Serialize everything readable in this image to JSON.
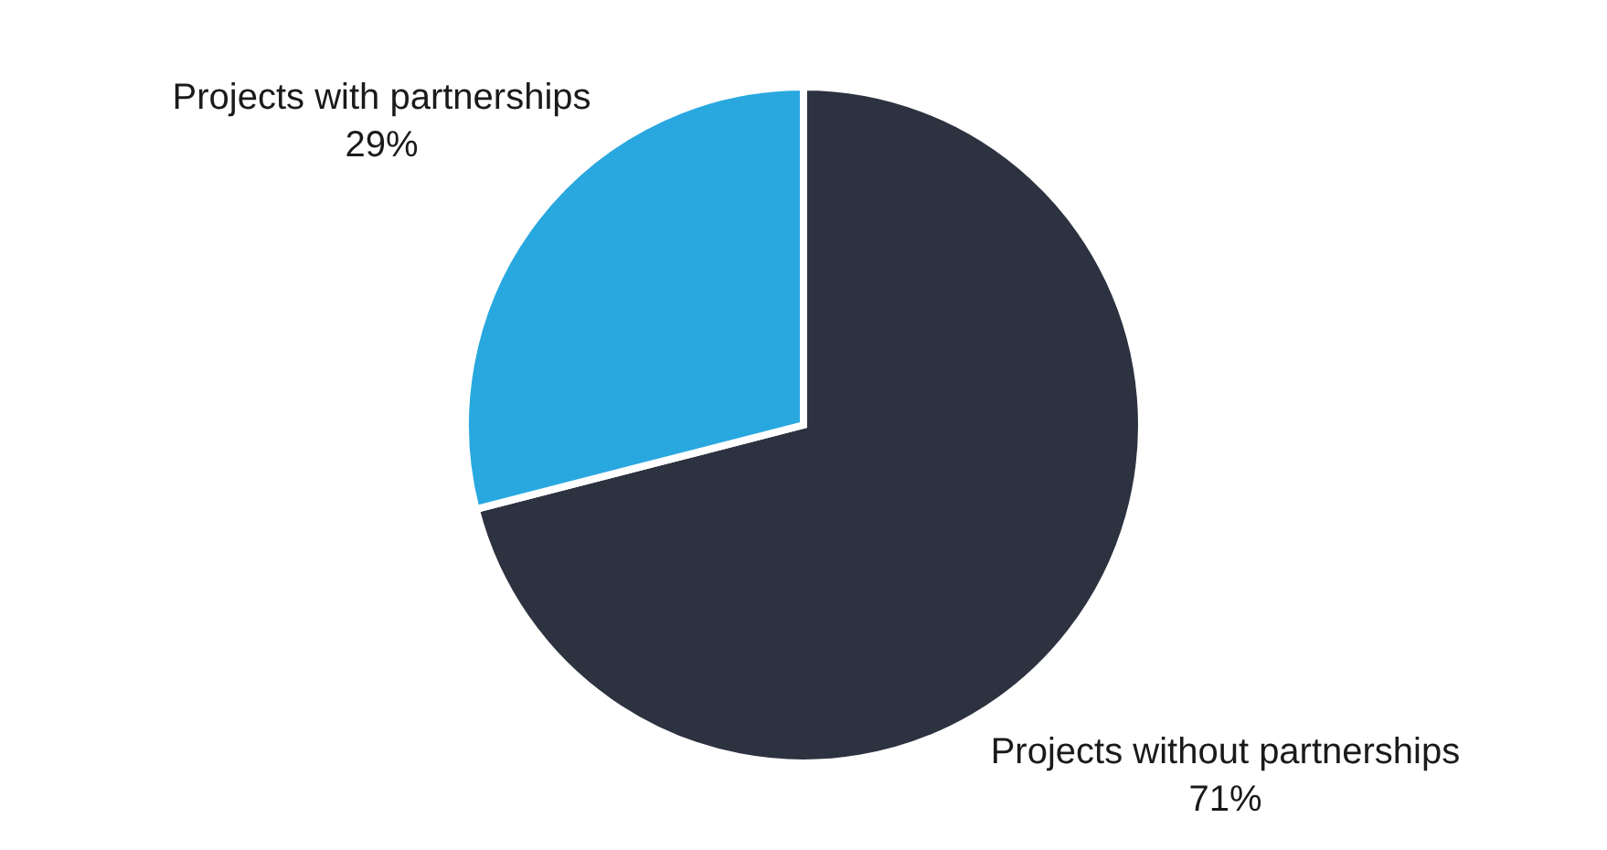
{
  "chart_data": {
    "type": "pie",
    "categories": [
      "Projects without partnerships",
      "Projects with partnerships"
    ],
    "values": [
      71,
      29
    ],
    "colors": [
      "#2d3240",
      "#29a8e0"
    ],
    "value_labels": [
      "71%",
      "29%"
    ],
    "legend": false
  }
}
